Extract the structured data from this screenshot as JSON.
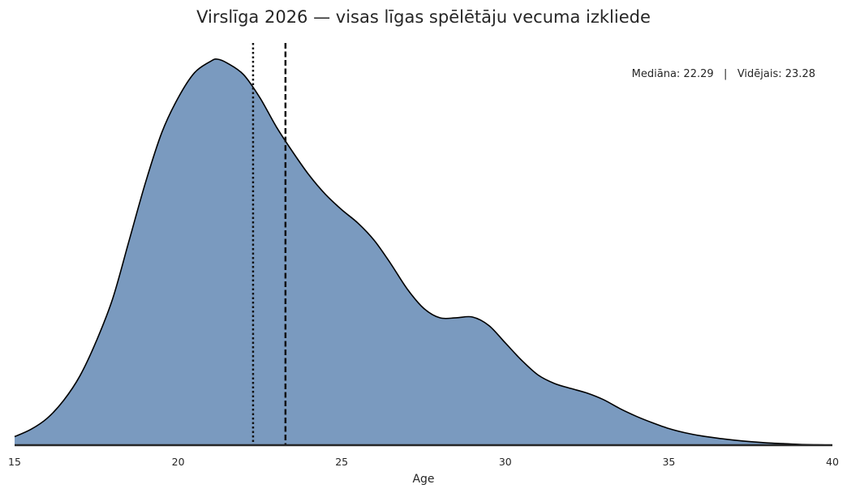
{
  "chart_data": {
    "type": "area",
    "title": "Virslīga 2026 — visas līgas spēlētāju vecuma izkliede",
    "xlabel": "Age",
    "ylabel": "",
    "xlim": [
      15,
      40
    ],
    "ylim": [
      0,
      0.1
    ],
    "x_ticks": [
      15,
      20,
      25,
      30,
      35,
      40
    ],
    "x_tick_labels": [
      "15",
      "20",
      "25",
      "30",
      "35",
      "40"
    ],
    "grid": false,
    "series": [
      {
        "x": [
          15,
          15.5,
          16,
          16.5,
          17,
          17.5,
          18,
          18.5,
          19,
          19.5,
          20,
          20.5,
          21,
          21.2,
          21.5,
          22,
          22.5,
          23,
          23.5,
          24,
          24.5,
          25,
          25.5,
          26,
          26.5,
          27,
          27.5,
          28,
          28.5,
          29,
          29.5,
          30,
          30.5,
          31,
          31.5,
          32,
          32.5,
          33,
          33.5,
          34,
          34.5,
          35,
          35.5,
          36,
          36.5,
          37,
          37.5,
          38,
          38.5,
          39,
          39.5,
          40
        ],
        "y": [
          0.0022,
          0.0041,
          0.007,
          0.0116,
          0.018,
          0.027,
          0.038,
          0.053,
          0.068,
          0.081,
          0.09,
          0.0965,
          0.0995,
          0.1,
          0.099,
          0.096,
          0.09,
          0.0825,
          0.076,
          0.07,
          0.065,
          0.061,
          0.0575,
          0.053,
          0.047,
          0.0405,
          0.0355,
          0.033,
          0.033,
          0.0332,
          0.031,
          0.0265,
          0.022,
          0.0182,
          0.016,
          0.0147,
          0.0135,
          0.0118,
          0.0095,
          0.0075,
          0.0058,
          0.0043,
          0.0032,
          0.0024,
          0.0018,
          0.0013,
          0.0009,
          0.0006,
          0.0004,
          0.0002,
          0.0001,
          0.0
        ]
      }
    ],
    "fill_color": "#7a9abf",
    "line_color": "#000000",
    "reference_lines": [
      {
        "x": 22.29,
        "style": "dotted"
      },
      {
        "x": 23.28,
        "style": "dashed"
      }
    ],
    "annotation": "Mediāna: 22.29   |   Vidējais: 23.28"
  }
}
